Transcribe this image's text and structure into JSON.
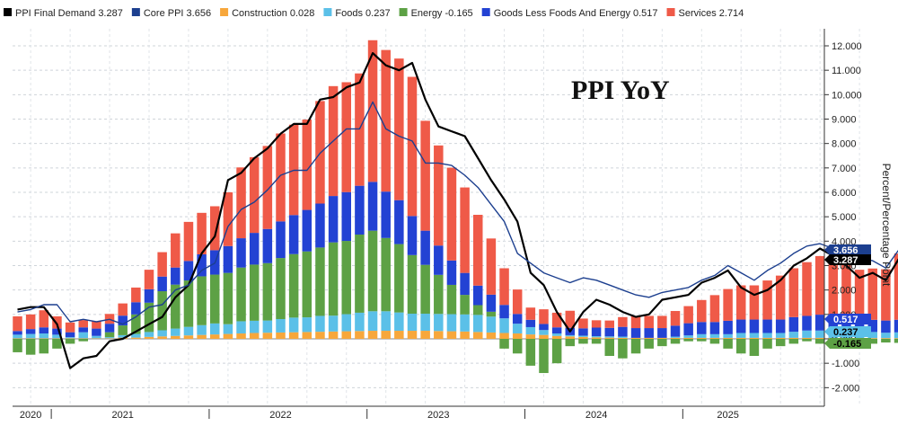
{
  "chart_data": {
    "type": "bar",
    "title": "PPI YoY",
    "ylabel": "Percent/Percentage Point",
    "ylim": [
      -2.6,
      12.9
    ],
    "yticks": [
      "-2.000",
      "-1.000",
      "0.000",
      "1.000",
      "2.000",
      "3.000",
      "4.000",
      "5.000",
      "6.000",
      "7.000",
      "8.000",
      "9.000",
      "10.000",
      "11.000",
      "12.000"
    ],
    "ytick_values": [
      -2,
      -1,
      0,
      1,
      2,
      3,
      4,
      5,
      6,
      7,
      8,
      9,
      10,
      11,
      12
    ],
    "year_labels": [
      "2020",
      "2021",
      "2022",
      "2023",
      "2024",
      "2025"
    ],
    "year_label_month_index": [
      1,
      8,
      20,
      32,
      44,
      54
    ],
    "year_separator_month_index": [
      3,
      15,
      27,
      39,
      51
    ],
    "grid": true,
    "legend_position": "top",
    "start_month": "2019-12",
    "categories": [
      "2019-12",
      "2020-01",
      "2020-02",
      "2020-03",
      "2020-04",
      "2020-05",
      "2020-06",
      "2020-07",
      "2020-08",
      "2020-09",
      "2020-10",
      "2020-11",
      "2020-12",
      "2021-01",
      "2021-02",
      "2021-03",
      "2021-04",
      "2021-05",
      "2021-06",
      "2021-07",
      "2021-08",
      "2021-09",
      "2021-10",
      "2021-11",
      "2021-12",
      "2022-01",
      "2022-02",
      "2022-03",
      "2022-04",
      "2022-05",
      "2022-06",
      "2022-07",
      "2022-08",
      "2022-09",
      "2022-10",
      "2022-11",
      "2022-12",
      "2023-01",
      "2023-02",
      "2023-03",
      "2023-04",
      "2023-05",
      "2023-06",
      "2023-07",
      "2023-08",
      "2023-09",
      "2023-10",
      "2023-11",
      "2023-12",
      "2024-01",
      "2024-02",
      "2024-03",
      "2024-04",
      "2024-05",
      "2024-06",
      "2024-07",
      "2024-08",
      "2024-09",
      "2024-10",
      "2024-11",
      "2024-12",
      "2025-01",
      "2025-02",
      "2025-03",
      "2025-04",
      "2025-05",
      "2025-06",
      "2025-07"
    ],
    "series": [
      {
        "name": "PPI Final Demand",
        "legend_value": "3.287",
        "color": "#000000",
        "kind": "line",
        "values": [
          1.2,
          1.3,
          1.3,
          0.6,
          -1.2,
          -0.8,
          -0.7,
          -0.1,
          0.0,
          0.3,
          0.6,
          0.9,
          1.7,
          2.2,
          3.5,
          4.2,
          6.5,
          6.8,
          7.4,
          7.8,
          8.4,
          8.8,
          8.8,
          9.8,
          9.9,
          10.3,
          10.5,
          11.7,
          11.2,
          11.0,
          11.3,
          9.8,
          8.7,
          8.5,
          8.3,
          7.4,
          6.5,
          5.7,
          4.8,
          2.7,
          2.2,
          1.1,
          0.3,
          1.1,
          1.6,
          1.4,
          1.1,
          0.9,
          1.0,
          1.6,
          1.7,
          1.8,
          2.3,
          2.5,
          2.8,
          2.1,
          1.8,
          2.0,
          2.4,
          3.0,
          3.3,
          3.7,
          3.4,
          3.0,
          2.5,
          2.7,
          2.4,
          3.287
        ]
      },
      {
        "name": "Core PPI",
        "legend_value": "3.656",
        "color": "#1c3f8f",
        "kind": "line",
        "values": [
          1.1,
          1.2,
          1.4,
          1.4,
          0.7,
          0.8,
          0.7,
          0.8,
          0.6,
          0.9,
          1.3,
          1.4,
          2.0,
          2.2,
          2.8,
          3.1,
          4.6,
          5.3,
          5.6,
          6.1,
          6.7,
          6.9,
          6.9,
          7.6,
          8.1,
          8.6,
          8.6,
          9.7,
          8.6,
          8.3,
          8.1,
          7.2,
          7.2,
          7.1,
          6.7,
          6.2,
          5.5,
          4.8,
          3.5,
          3.1,
          2.7,
          2.5,
          2.3,
          2.5,
          2.4,
          2.2,
          2.0,
          1.8,
          1.7,
          1.9,
          2.0,
          2.1,
          2.4,
          2.6,
          3.0,
          2.7,
          2.4,
          2.8,
          3.1,
          3.5,
          3.8,
          3.9,
          3.7,
          3.8,
          3.3,
          3.2,
          2.9,
          3.656
        ]
      },
      {
        "name": "Construction",
        "legend_value": "0.028",
        "color": "#f7a73b",
        "kind": "bar",
        "values": [
          0.02,
          0.02,
          0.02,
          0.02,
          0.02,
          0.02,
          0.02,
          0.02,
          0.05,
          0.05,
          0.08,
          0.1,
          0.12,
          0.14,
          0.16,
          0.18,
          0.2,
          0.22,
          0.24,
          0.25,
          0.26,
          0.27,
          0.28,
          0.29,
          0.3,
          0.31,
          0.32,
          0.33,
          0.33,
          0.33,
          0.33,
          0.33,
          0.32,
          0.31,
          0.3,
          0.28,
          0.26,
          0.24,
          0.22,
          0.18,
          0.16,
          0.12,
          0.1,
          0.08,
          0.06,
          0.05,
          0.04,
          0.04,
          0.04,
          0.04,
          0.04,
          0.04,
          0.04,
          0.04,
          0.04,
          0.04,
          0.04,
          0.04,
          0.04,
          0.04,
          0.04,
          0.04,
          0.04,
          0.03,
          0.03,
          0.03,
          0.03,
          0.028
        ]
      },
      {
        "name": "Foods",
        "legend_value": "0.237",
        "color": "#5bc0e8",
        "kind": "bar",
        "values": [
          0.15,
          0.18,
          0.2,
          0.15,
          0.05,
          0.25,
          0.1,
          0.05,
          0.1,
          0.15,
          0.2,
          0.25,
          0.3,
          0.35,
          0.4,
          0.45,
          0.4,
          0.5,
          0.5,
          0.5,
          0.55,
          0.6,
          0.6,
          0.65,
          0.65,
          0.7,
          0.75,
          0.8,
          0.8,
          0.75,
          0.7,
          0.7,
          0.7,
          0.7,
          0.7,
          0.7,
          0.65,
          0.6,
          0.4,
          0.3,
          0.2,
          0.1,
          0.05,
          0.05,
          0.05,
          0.05,
          0.05,
          0.0,
          0.0,
          0.0,
          0.05,
          0.1,
          0.15,
          0.15,
          0.15,
          0.2,
          0.2,
          0.2,
          0.2,
          0.25,
          0.3,
          0.3,
          0.3,
          0.3,
          0.25,
          0.25,
          0.22,
          0.237
        ]
      },
      {
        "name": "Energy",
        "legend_value": "-0.165",
        "color": "#5da145",
        "kind": "bar",
        "values": [
          -0.55,
          -0.65,
          -0.6,
          -0.4,
          -0.2,
          -0.1,
          0.0,
          0.2,
          0.4,
          0.8,
          1.2,
          1.6,
          1.8,
          1.9,
          2.0,
          2.0,
          2.1,
          2.2,
          2.3,
          2.35,
          2.5,
          2.6,
          2.7,
          2.8,
          3.0,
          3.0,
          3.2,
          3.3,
          3.0,
          2.8,
          2.4,
          2.0,
          1.6,
          1.2,
          0.8,
          0.4,
          0.2,
          -0.4,
          -0.6,
          -1.1,
          -1.4,
          -1.0,
          -0.3,
          -0.2,
          -0.2,
          -0.7,
          -0.8,
          -0.6,
          -0.4,
          -0.3,
          -0.2,
          -0.1,
          -0.1,
          -0.2,
          -0.4,
          -0.6,
          -0.7,
          -0.4,
          -0.3,
          -0.2,
          -0.1,
          -0.2,
          -0.3,
          -0.4,
          -0.3,
          -0.2,
          -0.15,
          -0.165
        ]
      },
      {
        "name": "Goods Less Foods And Energy",
        "legend_value": "0.517",
        "color": "#2342d3",
        "kind": "bar",
        "values": [
          0.15,
          0.2,
          0.25,
          0.25,
          0.2,
          0.2,
          0.3,
          0.35,
          0.4,
          0.5,
          0.55,
          0.6,
          0.7,
          0.8,
          0.9,
          1.0,
          1.1,
          1.2,
          1.3,
          1.4,
          1.5,
          1.6,
          1.7,
          1.8,
          1.9,
          2.0,
          2.0,
          2.0,
          1.9,
          1.8,
          1.6,
          1.4,
          1.2,
          1.0,
          0.9,
          0.8,
          0.7,
          0.55,
          0.4,
          0.3,
          0.25,
          0.25,
          0.3,
          0.3,
          0.35,
          0.35,
          0.4,
          0.4,
          0.4,
          0.4,
          0.45,
          0.5,
          0.5,
          0.5,
          0.55,
          0.55,
          0.55,
          0.55,
          0.55,
          0.6,
          0.6,
          0.65,
          0.65,
          0.55,
          0.55,
          0.5,
          0.5,
          0.517
        ]
      },
      {
        "name": "Services",
        "legend_value": "2.714",
        "color": "#ef5a48",
        "kind": "bar",
        "values": [
          0.6,
          0.6,
          0.7,
          0.5,
          0.4,
          0.3,
          0.3,
          0.4,
          0.5,
          0.6,
          0.8,
          1.0,
          1.4,
          1.6,
          1.7,
          1.8,
          2.2,
          2.9,
          3.1,
          3.4,
          3.6,
          3.7,
          3.7,
          4.2,
          4.5,
          4.5,
          4.6,
          5.8,
          5.8,
          5.8,
          5.7,
          4.5,
          4.1,
          3.8,
          3.5,
          2.9,
          2.3,
          1.5,
          1.0,
          0.5,
          0.6,
          0.6,
          0.7,
          0.4,
          0.3,
          0.3,
          0.4,
          0.5,
          0.5,
          0.5,
          0.6,
          0.7,
          0.9,
          1.1,
          1.3,
          1.4,
          1.4,
          1.6,
          1.8,
          2.0,
          2.2,
          2.4,
          2.4,
          2.2,
          2.0,
          2.1,
          2.1,
          2.714
        ]
      }
    ],
    "value_tags": [
      {
        "label": "3.656",
        "value": 3.656,
        "color": "#1c3f8f",
        "text_color": "#ffffff"
      },
      {
        "label": "3.287",
        "value": 3.287,
        "color": "#000000",
        "text_color": "#ffffff"
      },
      {
        "label": "0.517",
        "value": 0.517,
        "color": "#2342d3",
        "text_color": "#ffffff"
      },
      {
        "label": "0.237",
        "value": 0.237,
        "color": "#5bc0e8",
        "text_color": "#000000"
      },
      {
        "label": "-0.165",
        "value": -0.165,
        "color": "#5da145",
        "text_color": "#000000"
      }
    ]
  }
}
